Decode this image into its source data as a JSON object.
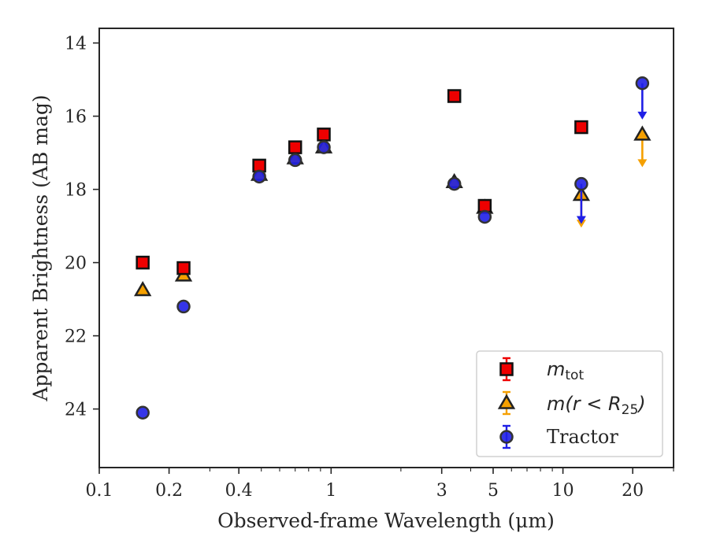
{
  "chart_data": {
    "type": "scatter",
    "xlabel": "Observed-frame Wavelength (μm)",
    "ylabel": "Apparent Brightness (AB mag)",
    "xscale": "log",
    "xlim": [
      0.1,
      30
    ],
    "ylim": [
      25.6,
      13.6
    ],
    "y_inverted": true,
    "x_tick_labels": [
      "0.1",
      "0.2",
      "0.4",
      "1",
      "3",
      "5",
      "10",
      "20"
    ],
    "x_ticks": [
      0.1,
      0.2,
      0.4,
      1,
      3,
      5,
      10,
      20
    ],
    "y_ticks": [
      14,
      16,
      18,
      20,
      22,
      24
    ],
    "y_tick_labels": [
      "14",
      "16",
      "18",
      "20",
      "22",
      "24"
    ],
    "legend_position": "lower right",
    "series": [
      {
        "name": "m_tot",
        "legend_base": "m",
        "legend_sub": "tot",
        "marker": "square",
        "color": "#ee0000",
        "points": [
          {
            "x": 0.154,
            "y": 20.0
          },
          {
            "x": 0.231,
            "y": 20.15
          },
          {
            "x": 0.49,
            "y": 17.35
          },
          {
            "x": 0.7,
            "y": 16.85
          },
          {
            "x": 0.93,
            "y": 16.5
          },
          {
            "x": 3.4,
            "y": 15.45
          },
          {
            "x": 4.6,
            "y": 18.45
          },
          {
            "x": 12.0,
            "y": 16.3
          }
        ]
      },
      {
        "name": "m(r < R25)",
        "legend_pre": "m(r < R",
        "legend_sub": "25",
        "legend_post": ")",
        "marker": "triangle",
        "color": "#f5a000",
        "points": [
          {
            "x": 0.154,
            "y": 20.75
          },
          {
            "x": 0.231,
            "y": 20.35
          },
          {
            "x": 0.49,
            "y": 17.6
          },
          {
            "x": 0.7,
            "y": 17.15
          },
          {
            "x": 0.93,
            "y": 16.85
          },
          {
            "x": 3.4,
            "y": 17.8
          },
          {
            "x": 4.6,
            "y": 18.5
          },
          {
            "x": 12.0,
            "y": 18.15,
            "upper_limit_to": 19.0
          },
          {
            "x": 22.0,
            "y": 16.5,
            "upper_limit_to": 17.35
          }
        ]
      },
      {
        "name": "Tractor",
        "marker": "circle",
        "color": "#1f1fe6",
        "points": [
          {
            "x": 0.154,
            "y": 24.1
          },
          {
            "x": 0.231,
            "y": 21.2
          },
          {
            "x": 0.49,
            "y": 17.65
          },
          {
            "x": 0.7,
            "y": 17.2
          },
          {
            "x": 0.93,
            "y": 16.85
          },
          {
            "x": 3.4,
            "y": 17.85
          },
          {
            "x": 4.6,
            "y": 18.75
          },
          {
            "x": 12.0,
            "y": 17.85,
            "upper_limit_to": 18.9
          },
          {
            "x": 22.0,
            "y": 15.1,
            "upper_limit_to": 16.05
          }
        ]
      }
    ]
  }
}
